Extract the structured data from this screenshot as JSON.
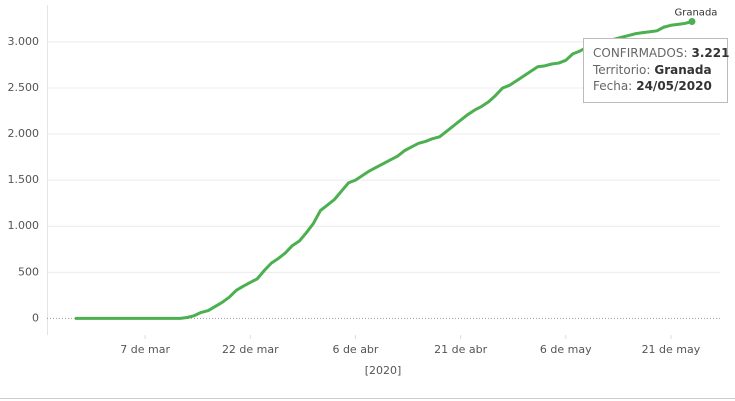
{
  "chart_data": {
    "type": "line",
    "x_label": "[2020]",
    "x": [
      "2020-02-26",
      "2020-02-27",
      "2020-02-28",
      "2020-02-29",
      "2020-03-01",
      "2020-03-02",
      "2020-03-03",
      "2020-03-04",
      "2020-03-05",
      "2020-03-06",
      "2020-03-07",
      "2020-03-08",
      "2020-03-09",
      "2020-03-10",
      "2020-03-11",
      "2020-03-12",
      "2020-03-13",
      "2020-03-14",
      "2020-03-15",
      "2020-03-16",
      "2020-03-17",
      "2020-03-18",
      "2020-03-19",
      "2020-03-20",
      "2020-03-21",
      "2020-03-22",
      "2020-03-23",
      "2020-03-24",
      "2020-03-25",
      "2020-03-26",
      "2020-03-27",
      "2020-03-28",
      "2020-03-29",
      "2020-03-30",
      "2020-03-31",
      "2020-04-01",
      "2020-04-02",
      "2020-04-03",
      "2020-04-04",
      "2020-04-05",
      "2020-04-06",
      "2020-04-07",
      "2020-04-08",
      "2020-04-09",
      "2020-04-10",
      "2020-04-11",
      "2020-04-12",
      "2020-04-13",
      "2020-04-14",
      "2020-04-15",
      "2020-04-16",
      "2020-04-17",
      "2020-04-18",
      "2020-04-19",
      "2020-04-20",
      "2020-04-21",
      "2020-04-22",
      "2020-04-23",
      "2020-04-24",
      "2020-04-25",
      "2020-04-26",
      "2020-04-27",
      "2020-04-28",
      "2020-04-29",
      "2020-04-30",
      "2020-05-01",
      "2020-05-02",
      "2020-05-03",
      "2020-05-04",
      "2020-05-05",
      "2020-05-06",
      "2020-05-07",
      "2020-05-08",
      "2020-05-09",
      "2020-05-10",
      "2020-05-11",
      "2020-05-12",
      "2020-05-13",
      "2020-05-14",
      "2020-05-15",
      "2020-05-16",
      "2020-05-17",
      "2020-05-18",
      "2020-05-19",
      "2020-05-20",
      "2020-05-21",
      "2020-05-22",
      "2020-05-23",
      "2020-05-24"
    ],
    "series": [
      {
        "name": "Granada",
        "color": "#4caf50",
        "values": [
          0,
          0,
          0,
          0,
          0,
          0,
          0,
          0,
          0,
          0,
          0,
          0,
          0,
          0,
          0,
          0,
          10,
          30,
          65,
          85,
          130,
          175,
          230,
          305,
          350,
          390,
          430,
          520,
          600,
          650,
          710,
          790,
          840,
          930,
          1030,
          1170,
          1230,
          1290,
          1380,
          1470,
          1500,
          1550,
          1600,
          1640,
          1680,
          1720,
          1760,
          1820,
          1860,
          1900,
          1920,
          1950,
          1970,
          2030,
          2090,
          2150,
          2210,
          2260,
          2300,
          2350,
          2420,
          2500,
          2530,
          2580,
          2630,
          2680,
          2730,
          2740,
          2760,
          2770,
          2800,
          2870,
          2900,
          2940,
          2970,
          2990,
          3010,
          3030,
          3050,
          3070,
          3090,
          3100,
          3110,
          3120,
          3160,
          3180,
          3190,
          3200,
          3221
        ],
        "value_labels": [
          null,
          null,
          null,
          null,
          null,
          null,
          null,
          null,
          null,
          null,
          null,
          null,
          null,
          null,
          null,
          null,
          null,
          null,
          null,
          null,
          null,
          null,
          null,
          null,
          null,
          null,
          null,
          null,
          null,
          null,
          null,
          null,
          null,
          null,
          null,
          null,
          null,
          null,
          null,
          null,
          null,
          null,
          null,
          null,
          null,
          null,
          null,
          null,
          null,
          null,
          null,
          null,
          null,
          null,
          null,
          null,
          null,
          null,
          null,
          null,
          null,
          null,
          null,
          null,
          null,
          null,
          null,
          null,
          null,
          null,
          null,
          null,
          null,
          null,
          null,
          null,
          null,
          null,
          null,
          null,
          null,
          null,
          null,
          null,
          null,
          null,
          null,
          null,
          "3.221"
        ]
      }
    ],
    "xlim": [
      "2020-02-22",
      "2020-05-28"
    ],
    "xticks": [
      {
        "value": "2020-03-07",
        "label": "7 de mar"
      },
      {
        "value": "2020-03-22",
        "label": "22 de mar"
      },
      {
        "value": "2020-04-06",
        "label": "6 de abr"
      },
      {
        "value": "2020-04-21",
        "label": "21 de abr"
      },
      {
        "value": "2020-05-06",
        "label": "6 de may"
      },
      {
        "value": "2020-05-21",
        "label": "21 de may"
      }
    ],
    "ylim": [
      -180,
      3400
    ],
    "yticks": [
      0,
      500,
      {
        "value": 1000,
        "label": "1.000"
      },
      {
        "value": 1500,
        "label": "1.500"
      },
      {
        "value": 2000,
        "label": "2.000"
      },
      {
        "value": 2500,
        "label": "2.500"
      },
      {
        "value": 3000,
        "label": "3.000"
      }
    ],
    "grid": true,
    "tooltip": {
      "value_title": "CONFIRMADOS:",
      "territory_title": "Territorio:",
      "date_title": "Fecha:",
      "date": "24/05/2020"
    }
  }
}
